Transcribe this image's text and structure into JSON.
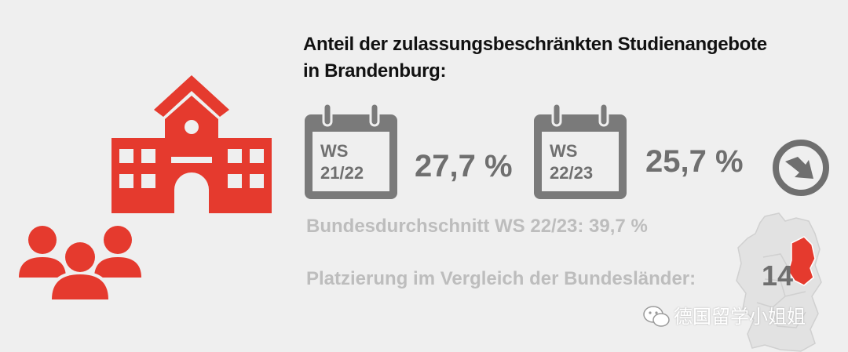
{
  "title": {
    "line1": "Anteil der zulassungsbeschränkten Studienangebote",
    "line2": "in Brandenburg:"
  },
  "semesters": [
    {
      "label_line1": "WS",
      "label_line2": "21/22",
      "value": "27,7 %"
    },
    {
      "label_line1": "WS",
      "label_line2": "22/23",
      "value": "25,7 %"
    }
  ],
  "trend_icon": "arrow-down-right-icon",
  "national_average": "Bundesdurchschnitt WS 22/23: 39,7 %",
  "ranking": {
    "label": "Platzierung im Vergleich der Bundesländer:",
    "value": "14"
  },
  "watermark": "德国留学小姐姐",
  "colors": {
    "accent_red": "#e53a2e",
    "dark_gray": "#6f6f6f",
    "light_gray": "#bdbdbd",
    "background": "#efefef"
  },
  "icons": [
    "school-building-icon",
    "people-group-icon",
    "calendar-icon",
    "germany-map-icon",
    "wechat-icon"
  ]
}
